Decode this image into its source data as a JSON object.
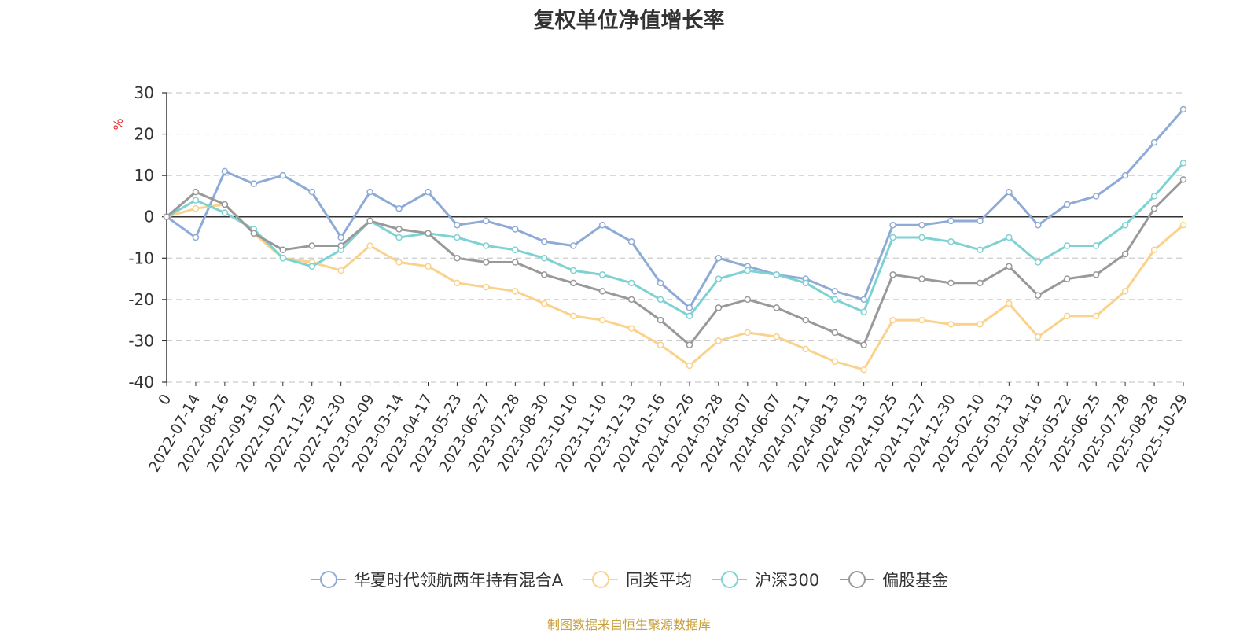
{
  "chart_data": {
    "type": "line",
    "title": "复权单位净值增长率",
    "ylabel": "%",
    "xlabel": "",
    "ylim": [
      -40,
      30
    ],
    "yticks": [
      "30",
      "20",
      "10",
      "0",
      "-10",
      "-20",
      "-30",
      "-40"
    ],
    "ytick_values": [
      30,
      20,
      10,
      0,
      -10,
      -20,
      -30,
      -40
    ],
    "grid": true,
    "legend_position": "bottom",
    "x": [
      "0",
      "2022-07-14",
      "2022-08-16",
      "2022-09-19",
      "2022-10-27",
      "2022-11-29",
      "2022-12-30",
      "2023-02-09",
      "2023-03-14",
      "2023-04-17",
      "2023-05-23",
      "2023-06-27",
      "2023-07-28",
      "2023-08-30",
      "2023-10-10",
      "2023-11-10",
      "2023-12-13",
      "2024-01-16",
      "2024-02-26",
      "2024-03-28",
      "2024-05-07",
      "2024-06-07",
      "2024-07-11",
      "2024-08-13",
      "2024-09-13",
      "2024-10-25",
      "2024-11-27",
      "2024-12-30",
      "2025-02-10",
      "2025-03-13",
      "2025-04-16",
      "2025-05-22",
      "2025-06-25",
      "2025-07-28",
      "2025-08-28",
      "2025-10-29"
    ],
    "series": [
      {
        "name": "华夏时代领航两年持有混合A",
        "color": "#8eaad6",
        "values": [
          0,
          -5,
          11,
          8,
          10,
          6,
          -5,
          6,
          2,
          6,
          -2,
          -1,
          -3,
          -6,
          -7,
          -2,
          -6,
          -16,
          -22,
          -10,
          -12,
          -14,
          -15,
          -18,
          -20,
          -2,
          -2,
          -1,
          -1,
          6,
          -2,
          3,
          5,
          10,
          18,
          26
        ]
      },
      {
        "name": "同类平均",
        "color": "#fad28c",
        "values": [
          0,
          2,
          3,
          -4,
          -10,
          -11,
          -13,
          -7,
          -11,
          -12,
          -16,
          -17,
          -18,
          -21,
          -24,
          -25,
          -27,
          -31,
          -36,
          -30,
          -28,
          -29,
          -32,
          -35,
          -37,
          -25,
          -25,
          -26,
          -26,
          -21,
          -29,
          -24,
          -24,
          -18,
          -8,
          -2
        ]
      },
      {
        "name": "沪深300",
        "color": "#7fd2d2",
        "values": [
          0,
          4,
          1,
          -3,
          -10,
          -12,
          -8,
          -1,
          -5,
          -4,
          -5,
          -7,
          -8,
          -10,
          -13,
          -14,
          -16,
          -20,
          -24,
          -15,
          -13,
          -14,
          -16,
          -20,
          -23,
          -5,
          -5,
          -6,
          -8,
          -5,
          -11,
          -7,
          -7,
          -2,
          5,
          13
        ]
      },
      {
        "name": "偏股基金",
        "color": "#999999",
        "values": [
          0,
          6,
          3,
          -4,
          -8,
          -7,
          -7,
          -1,
          -3,
          -4,
          -10,
          -11,
          -11,
          -14,
          -16,
          -18,
          -20,
          -25,
          -31,
          -22,
          -20,
          -22,
          -25,
          -28,
          -31,
          -14,
          -15,
          -16,
          -16,
          -12,
          -19,
          -15,
          -14,
          -9,
          2,
          9
        ]
      }
    ]
  },
  "source_note": "制图数据来自恒生聚源数据库"
}
